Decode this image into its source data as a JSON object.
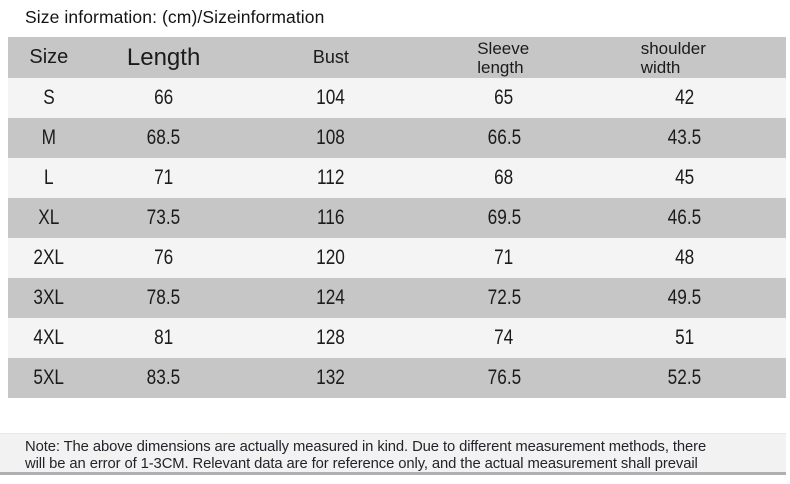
{
  "title": "Size information: (cm)/Sizeinformation",
  "table": {
    "columns": [
      {
        "label": "Size"
      },
      {
        "label": "Length"
      },
      {
        "label": "Bust"
      },
      {
        "line1": "Sleeve",
        "line2": "length"
      },
      {
        "line1": "shoulder",
        "line2": "width"
      }
    ],
    "rows": [
      {
        "size": "S",
        "length": "66",
        "bust": "104",
        "sleeve": "65",
        "shoulder": "42"
      },
      {
        "size": "M",
        "length": "68.5",
        "bust": "108",
        "sleeve": "66.5",
        "shoulder": "43.5"
      },
      {
        "size": "L",
        "length": "71",
        "bust": "112",
        "sleeve": "68",
        "shoulder": "45"
      },
      {
        "size": "XL",
        "length": "73.5",
        "bust": "116",
        "sleeve": "69.5",
        "shoulder": "46.5"
      },
      {
        "size": "2XL",
        "length": "76",
        "bust": "120",
        "sleeve": "71",
        "shoulder": "48"
      },
      {
        "size": "3XL",
        "length": "78.5",
        "bust": "124",
        "sleeve": "72.5",
        "shoulder": "49.5"
      },
      {
        "size": "4XL",
        "length": "81",
        "bust": "128",
        "sleeve": "74",
        "shoulder": "51"
      },
      {
        "size": "5XL",
        "length": "83.5",
        "bust": "132",
        "sleeve": "76.5",
        "shoulder": "52.5"
      }
    ]
  },
  "note": {
    "line1": "Note: The above dimensions are actually measured in kind. Due to different measurement methods, there",
    "line2": "will be an error of 1-3CM. Relevant data are for reference only, and the actual measurement shall prevail"
  },
  "colors": {
    "header_bg": "#c6c6c6",
    "row_stripe_gray": "#c6c6c6",
    "row_stripe_light": "#f4f4f5",
    "note_bg": "#f3f2f3",
    "note_border_bottom": "#b2afb2",
    "text": "#1b1b1b"
  }
}
